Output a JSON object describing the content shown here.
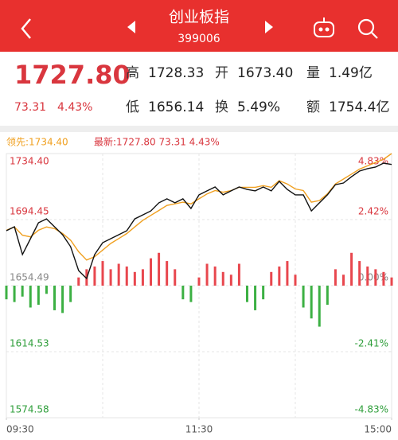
{
  "header": {
    "title": "创业板指",
    "code": "399006"
  },
  "quote": {
    "price": "1727.80",
    "change": "73.31",
    "change_pct": "4.43%",
    "stats": [
      {
        "label": "高",
        "value": "1728.33"
      },
      {
        "label": "开",
        "value": "1673.40"
      },
      {
        "label": "量",
        "value": "1.49亿"
      },
      {
        "label": "低",
        "value": "1656.14"
      },
      {
        "label": "换",
        "value": "5.49%"
      },
      {
        "label": "额",
        "value": "1754.4亿"
      }
    ]
  },
  "chart_data": {
    "type": "line",
    "legend_lead": "领先:1734.40",
    "legend_latest": "最新:1727.80 73.31 4.43%",
    "x": [
      0,
      1,
      2,
      3,
      4,
      5,
      6,
      7,
      8,
      9,
      10,
      11,
      12,
      13,
      14,
      15,
      16,
      17,
      18,
      19,
      20,
      21,
      22,
      23,
      24,
      25,
      26,
      27,
      28,
      29,
      30,
      31,
      32,
      33,
      34,
      35,
      36,
      37,
      38,
      39,
      40,
      41,
      42,
      43,
      44,
      45,
      46,
      47,
      48
    ],
    "xlim": [
      0,
      48
    ],
    "xticks": [
      {
        "value": 0,
        "label": "09:30"
      },
      {
        "value": 24,
        "label": "11:30"
      },
      {
        "value": 48,
        "label": "15:00"
      }
    ],
    "ylim": [
      1574.58,
      1734.4
    ],
    "yticks": [
      {
        "value": 1734.4,
        "label": "1734.40"
      },
      {
        "value": 1694.45,
        "label": "1694.45"
      },
      {
        "value": 1654.49,
        "label": "1654.49"
      },
      {
        "value": 1614.53,
        "label": "1614.53"
      },
      {
        "value": 1574.58,
        "label": "1574.58"
      }
    ],
    "y2lim": [
      -4.83,
      4.83
    ],
    "y2ticks": [
      {
        "value": 4.83,
        "label": "4.83%"
      },
      {
        "value": 2.42,
        "label": "2.42%"
      },
      {
        "value": 0,
        "label": "0.00%"
      },
      {
        "value": -2.41,
        "label": "-2.41%"
      },
      {
        "value": -4.83,
        "label": "-4.83%"
      }
    ],
    "grid": true,
    "series": [
      {
        "color": "#111111",
        "values": [
          1687.7,
          1690.1,
          1673.3,
          1682.9,
          1692.5,
          1694.9,
          1690.1,
          1685.3,
          1678.1,
          1663.6,
          1658.8,
          1673.3,
          1680.5,
          1682.9,
          1685.3,
          1687.7,
          1694.9,
          1697.3,
          1699.7,
          1704.6,
          1707.0,
          1704.6,
          1707.0,
          1701.2,
          1709.4,
          1711.8,
          1714.2,
          1709.4,
          1711.8,
          1714.2,
          1712.7,
          1711.8,
          1714.2,
          1711.8,
          1717.6,
          1712.7,
          1709.4,
          1709.4,
          1699.7,
          1704.6,
          1709.4,
          1715.6,
          1716.6,
          1720.4,
          1723.8,
          1725.3,
          1726.2,
          1728.6,
          1727.8
        ]
      },
      {
        "color": "#f0a020",
        "values": [
          1688,
          1690,
          1685,
          1684,
          1688,
          1690,
          1689,
          1686,
          1682,
          1675,
          1670,
          1672,
          1676,
          1680,
          1683,
          1686,
          1690,
          1694,
          1697,
          1700,
          1703,
          1704,
          1705,
          1704,
          1707,
          1710,
          1712,
          1711,
          1712,
          1714,
          1714,
          1714,
          1715,
          1714,
          1718,
          1716,
          1713,
          1712,
          1705,
          1706,
          1710,
          1716,
          1719,
          1722,
          1725,
          1727,
          1729,
          1731,
          1734.4
        ]
      }
    ],
    "volume": {
      "axis": "y2",
      "up_color": "#e8474e",
      "down_color": "#3cb043",
      "values": [
        -0.5,
        -0.6,
        -0.4,
        -0.8,
        -0.7,
        -0.3,
        -0.9,
        -1.0,
        -0.6,
        0.3,
        0.6,
        0.7,
        0.9,
        0.6,
        0.8,
        0.7,
        0.5,
        0.6,
        1.0,
        1.2,
        0.9,
        0.6,
        -0.5,
        -0.6,
        0.3,
        0.8,
        0.7,
        0.5,
        0.4,
        0.8,
        -0.6,
        -0.9,
        -0.5,
        0.5,
        0.7,
        0.9,
        0.4,
        -0.8,
        -1.2,
        -1.5,
        -0.7,
        0.6,
        0.4,
        1.2,
        0.9,
        0.7,
        0.6,
        0.5,
        0.3
      ]
    },
    "up_label_color": "#d9363e",
    "flat_label_color": "#888888",
    "down_label_color": "#2e9e3a"
  }
}
